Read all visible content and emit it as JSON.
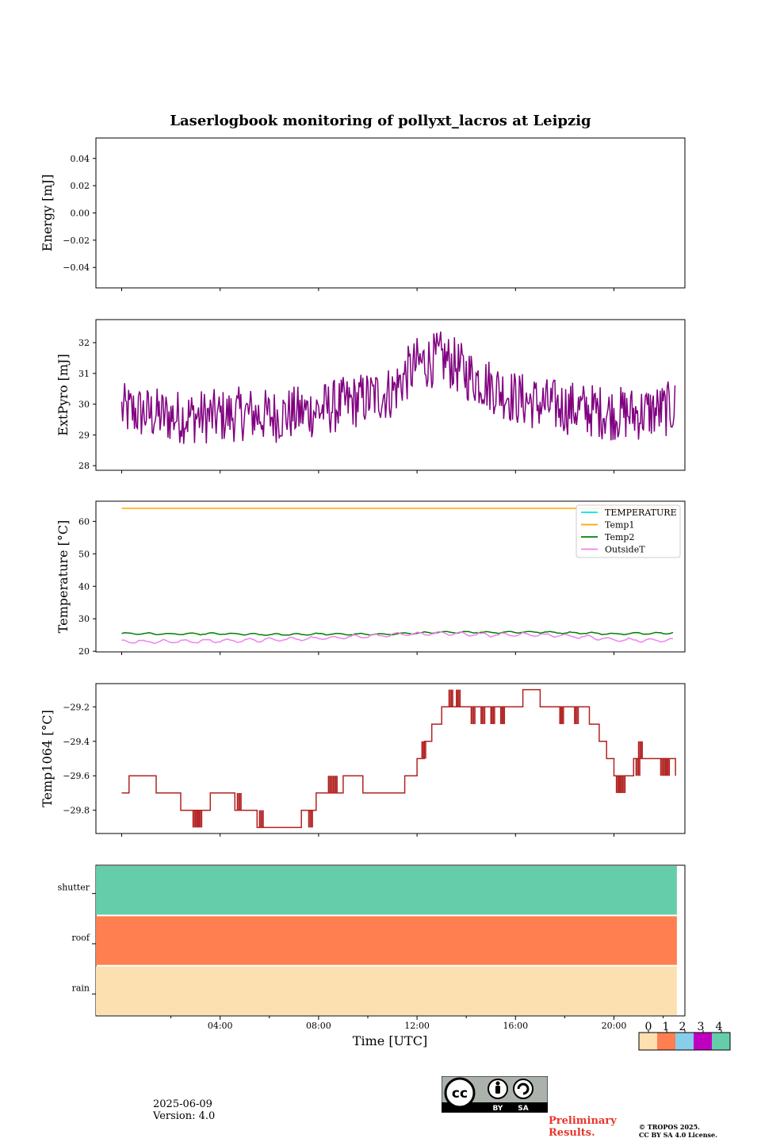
{
  "figure": {
    "title": "Laserlogbook monitoring of pollyxt_lacros at Leipzig",
    "xlabel": "Time [UTC]",
    "date": "2025-06-09",
    "version": "Version: 4.0",
    "preliminary": "Preliminary\nResults.",
    "copyright_line1": "© TROPOS 2025.",
    "copyright_line2": "CC BY SA 4.0 License.",
    "cc_badge": {
      "cc": "cc",
      "by": "BY",
      "sa": "SA"
    }
  },
  "chart_data": [
    {
      "id": "energy",
      "type": "line",
      "ylabel": "Energy [mJ]",
      "ylim": [
        -0.055,
        0.055
      ],
      "yticks": [
        -0.04,
        -0.02,
        0.0,
        0.02,
        0.04
      ],
      "ytick_labels": [
        "−0.04",
        "−0.02",
        "0.00",
        "0.02",
        "0.04"
      ],
      "series": []
    },
    {
      "id": "extpyro",
      "type": "line",
      "ylabel": "ExtPyro [mJ]",
      "ylim": [
        27.85,
        32.75
      ],
      "yticks": [
        28,
        29,
        30,
        31,
        32
      ],
      "ytick_labels": [
        "28",
        "29",
        "30",
        "31",
        "32"
      ],
      "series": [
        {
          "color": "#800080",
          "x": [
            0.0,
            1.0,
            2.0,
            3.0,
            4.0,
            5.0,
            6.0,
            7.0,
            8.0,
            9.0,
            10.0,
            11.0,
            11.5,
            12.0,
            12.5,
            13.0,
            13.5,
            14.0,
            15.0,
            16.0,
            17.0,
            18.0,
            19.0,
            20.0,
            21.0,
            22.0,
            22.5
          ],
          "trend": [
            29.8,
            29.7,
            29.6,
            29.6,
            29.6,
            29.7,
            29.6,
            29.7,
            29.8,
            30.0,
            30.2,
            30.4,
            30.9,
            31.3,
            31.4,
            31.5,
            31.3,
            31.0,
            30.6,
            30.2,
            30.0,
            29.9,
            29.8,
            29.7,
            29.7,
            29.8,
            29.9
          ],
          "noise_amp": 0.9,
          "min": 28.0,
          "max": 32.5
        }
      ]
    },
    {
      "id": "temperature",
      "type": "line",
      "ylabel": "Temperature [°C]",
      "ylim": [
        19.8,
        66.2
      ],
      "yticks": [
        20,
        30,
        40,
        50,
        60
      ],
      "ytick_labels": [
        "20",
        "30",
        "40",
        "50",
        "60"
      ],
      "legend_position": "top-right",
      "series": [
        {
          "name": "TEMPERATURE",
          "color": "#00e5e5",
          "x": [],
          "values": []
        },
        {
          "name": "Temp1",
          "color": "#ffa500",
          "x": [
            0.0,
            22.5
          ],
          "values": [
            64.0,
            64.0
          ]
        },
        {
          "name": "Temp2",
          "color": "#008000",
          "x": [
            0,
            2,
            4,
            6,
            8,
            10,
            11,
            12,
            13,
            14,
            15,
            16,
            17,
            18,
            19,
            20,
            21,
            22,
            22.5
          ],
          "values": [
            25.5,
            25.3,
            25.4,
            25.1,
            25.3,
            25.2,
            25.3,
            25.6,
            25.8,
            25.9,
            25.8,
            25.9,
            25.9,
            25.7,
            25.6,
            25.3,
            25.5,
            25.6,
            25.8
          ],
          "wiggle": 0.4
        },
        {
          "name": "OutsideT",
          "color": "#ee82ee",
          "x": [
            0,
            2,
            4,
            6,
            8,
            10,
            11,
            12,
            13,
            14,
            15,
            16,
            17,
            18,
            19,
            20,
            21,
            22,
            22.5
          ],
          "values": [
            23.0,
            23.0,
            23.2,
            23.5,
            24.0,
            24.7,
            25.0,
            25.4,
            25.5,
            25.3,
            25.0,
            25.2,
            25.0,
            24.8,
            24.3,
            23.5,
            23.4,
            23.3,
            23.5
          ],
          "wiggle": 0.8
        }
      ]
    },
    {
      "id": "temp1064",
      "type": "line",
      "ylabel": "Temp1064 [°C]",
      "ylim": [
        -29.935,
        -29.065
      ],
      "yticks": [
        -29.8,
        -29.6,
        -29.4,
        -29.2
      ],
      "ytick_labels": [
        "−29.8",
        "−29.6",
        "−29.4",
        "−29.2"
      ],
      "series": [
        {
          "color": "#b22222",
          "steps": [
            [
              0.0,
              -29.7
            ],
            [
              0.3,
              -29.6
            ],
            [
              1.4,
              -29.7
            ],
            [
              2.4,
              -29.8
            ],
            [
              3.6,
              -29.7
            ],
            [
              4.6,
              -29.8
            ],
            [
              5.5,
              -29.9
            ],
            [
              7.3,
              -29.8
            ],
            [
              7.9,
              -29.7
            ],
            [
              9.0,
              -29.6
            ],
            [
              9.8,
              -29.7
            ],
            [
              11.5,
              -29.6
            ],
            [
              12.0,
              -29.5
            ],
            [
              12.3,
              -29.4
            ],
            [
              12.6,
              -29.3
            ],
            [
              13.0,
              -29.2
            ],
            [
              14.0,
              -29.2
            ],
            [
              15.5,
              -29.2
            ],
            [
              16.3,
              -29.1
            ],
            [
              17.0,
              -29.2
            ],
            [
              18.5,
              -29.2
            ],
            [
              19.0,
              -29.3
            ],
            [
              19.4,
              -29.4
            ],
            [
              19.7,
              -29.5
            ],
            [
              20.0,
              -29.6
            ],
            [
              20.8,
              -29.5
            ],
            [
              21.5,
              -29.5
            ],
            [
              22.5,
              -29.6
            ]
          ],
          "flicker": [
            [
              2.9,
              -29.9
            ],
            [
              3.1,
              -29.9
            ],
            [
              4.5,
              -29.7
            ],
            [
              4.7,
              -29.7
            ],
            [
              5.6,
              -29.8
            ],
            [
              7.0,
              -29.9
            ],
            [
              7.6,
              -29.9
            ],
            [
              8.4,
              -29.6
            ],
            [
              8.6,
              -29.6
            ],
            [
              9.5,
              -29.6
            ],
            [
              12.2,
              -29.4
            ],
            [
              13.0,
              -29.2
            ],
            [
              13.3,
              -29.1
            ],
            [
              13.6,
              -29.1
            ],
            [
              14.2,
              -29.3
            ],
            [
              14.6,
              -29.3
            ],
            [
              15.0,
              -29.3
            ],
            [
              15.4,
              -29.3
            ],
            [
              16.5,
              -29.1
            ],
            [
              16.8,
              -29.1
            ],
            [
              17.8,
              -29.3
            ],
            [
              18.4,
              -29.3
            ],
            [
              20.1,
              -29.7
            ],
            [
              20.3,
              -29.7
            ],
            [
              20.6,
              -29.6
            ],
            [
              20.9,
              -29.6
            ],
            [
              21.0,
              -29.4
            ],
            [
              21.9,
              -29.6
            ],
            [
              22.1,
              -29.6
            ]
          ]
        }
      ]
    },
    {
      "id": "status",
      "type": "heatmap",
      "categories": [
        "rain",
        "roof",
        "shutter"
      ],
      "values": [
        0,
        1,
        4
      ],
      "x_start": 0.0,
      "x_end": 22.75,
      "xlabel": "Time [UTC]",
      "xticks": [
        4,
        8,
        12,
        16,
        20
      ],
      "xtick_labels": [
        "04:00",
        "08:00",
        "12:00",
        "16:00",
        "20:00"
      ],
      "colorbar": {
        "labels": [
          "0",
          "1",
          "2",
          "3",
          "4"
        ],
        "colors": [
          "#fde0af",
          "#ff7f50",
          "#87ceeb",
          "#c000c0",
          "#66cdaa"
        ]
      }
    }
  ]
}
